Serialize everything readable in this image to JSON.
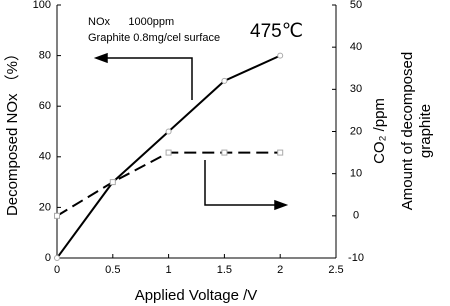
{
  "chart_data": {
    "type": "line",
    "x_label": "Applied Voltage /V",
    "y_label": "Decomposed NOx （%）",
    "y2_label_lines": [
      "CO₂ /ppm",
      "Amount of decomposed",
      "graphite"
    ],
    "annotations": [
      "NOx      1000ppm",
      "Graphite 0.8mg/cel surface",
      "475℃"
    ],
    "x": [
      0,
      0.5,
      1,
      1.5,
      2
    ],
    "series": [
      {
        "color": "#000000",
        "values": [
          0,
          30,
          50,
          70,
          80
        ]
      },
      {
        "color": "#000000",
        "values": [
          0,
          8,
          15,
          15,
          15
        ],
        "axis": "y2",
        "dashed": true
      }
    ],
    "xlim": [
      0,
      2.5
    ],
    "xticks": [
      0,
      0.5,
      1,
      1.5,
      2,
      2.5
    ],
    "ylim": [
      0,
      100
    ],
    "yticks": [
      0,
      20,
      40,
      60,
      80,
      100
    ],
    "y2lim": [
      -10,
      50
    ],
    "y2ticks": [
      -10,
      0,
      10,
      20,
      30,
      40,
      50
    ]
  }
}
